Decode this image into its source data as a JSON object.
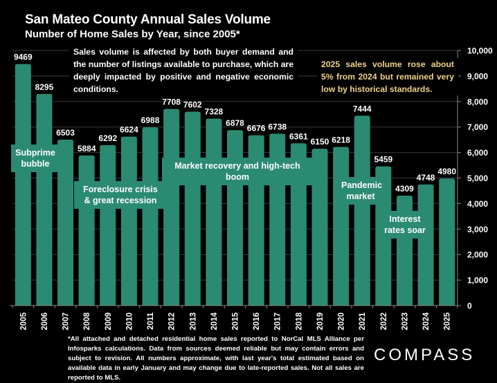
{
  "header": {
    "title": "San Mateo County Annual Sales Volume",
    "subtitle": "Number of Home Sales by Year, since 2005*"
  },
  "notes": {
    "main": "Sales volume is affected by both buyer demand and the number of listings available to purchase, which are deeply impacted by positive and negative economic conditions.",
    "highlight": "2025 sales volume rose about 5% from 2024 but remained very low by historical standards."
  },
  "footnote": "*All attached and detached residential home sales reported to NorCal MLS Alliance per Infosparks calculations. Data from sources deemed reliable but may contain errors and subject to revision. All numbers approximate, with last year's total estimated based on available data in early January and may change due to late-reported sales. Not all sales are reported to MLS.",
  "brand": {
    "logo_text": "COMPASS"
  },
  "colors": {
    "bar": "#2b8a72",
    "highlight_text": "#f0d38a",
    "background": "#000000",
    "grid": "#3a3a3a"
  },
  "chart_data": {
    "type": "bar",
    "title": "San Mateo County Annual Sales Volume",
    "subtitle": "Number of Home Sales by Year, since 2005*",
    "xlabel": "",
    "ylabel": "",
    "categories": [
      "2005",
      "2006",
      "2007",
      "2008",
      "2009",
      "2010",
      "2011",
      "2012",
      "2013",
      "2014",
      "2015",
      "2016",
      "2017",
      "2018",
      "2019",
      "2020",
      "2021",
      "2022",
      "2023",
      "2024",
      "2025"
    ],
    "values": [
      9469,
      8295,
      6503,
      5884,
      6292,
      6624,
      6988,
      7708,
      7602,
      7328,
      6878,
      6676,
      6738,
      6361,
      6150,
      6218,
      7444,
      5459,
      4309,
      4748,
      4980
    ],
    "ylim": [
      0,
      10000
    ],
    "y_ticks": [
      0,
      1000,
      2000,
      3000,
      4000,
      5000,
      6000,
      7000,
      8000,
      9000,
      10000
    ],
    "y_tick_labels": [
      "0",
      "1,000",
      "2,000",
      "3,000",
      "4,000",
      "5,000",
      "6,000",
      "7,000",
      "8,000",
      "9,000",
      "10,000"
    ],
    "y_axis_side": "right",
    "grid": true,
    "data_labels": true,
    "annotations": [
      {
        "text": "Subprime bubble",
        "lines": [
          "Subprime",
          "bubble"
        ],
        "span": [
          "2005",
          "2006"
        ]
      },
      {
        "text": "Foreclosure crisis & great recession",
        "lines": [
          "Foreclosure crisis",
          "& great recession"
        ],
        "span": [
          "2007",
          "2011"
        ]
      },
      {
        "text": "Market recovery and high-tech boom",
        "lines": [
          "Market recovery and high-tech boom"
        ],
        "span": [
          "2012",
          "2018"
        ]
      },
      {
        "text": "Pandemic market",
        "lines": [
          "Pandemic",
          "market"
        ],
        "span": [
          "2020",
          "2021"
        ]
      },
      {
        "text": "Interest rates soar",
        "lines": [
          "Interest",
          "rates soar"
        ],
        "span": [
          "2022",
          "2024"
        ]
      }
    ]
  }
}
